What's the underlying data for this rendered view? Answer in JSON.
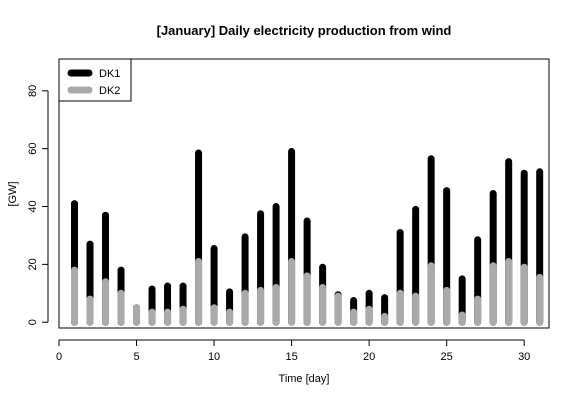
{
  "chart_data": {
    "type": "bar",
    "title": "[January] Daily electricity production from wind",
    "xlabel": "Time [day]",
    "ylabel": "[GW]",
    "xlim": [
      0,
      31.6
    ],
    "ylim": [
      -2,
      91
    ],
    "xticks": [
      0,
      5,
      10,
      15,
      20,
      25,
      30
    ],
    "yticks": [
      0,
      20,
      40,
      60,
      80
    ],
    "grid": false,
    "legend_position": "top-left",
    "x": [
      1,
      2,
      3,
      4,
      5,
      6,
      7,
      8,
      9,
      10,
      11,
      12,
      13,
      14,
      15,
      16,
      17,
      18,
      19,
      20,
      21,
      22,
      23,
      24,
      25,
      26,
      27,
      28,
      29,
      30,
      31
    ],
    "series": [
      {
        "name": "DK1",
        "color": "#000000",
        "values": [
          41,
          27,
          37,
          18,
          5,
          11.5,
          12.5,
          12.5,
          58.5,
          25.5,
          10.5,
          29.5,
          37.5,
          40,
          59,
          35,
          19,
          9.5,
          7.5,
          10,
          8.5,
          31,
          39,
          56.5,
          45.5,
          15,
          28.5,
          44.5,
          55.5,
          51.5,
          52
        ]
      },
      {
        "name": "DK2",
        "color": "#aaaaaa",
        "values": [
          18,
          8,
          14,
          10,
          5,
          3.5,
          3.5,
          4.5,
          21,
          5,
          3.5,
          10,
          11,
          12,
          21,
          16,
          12,
          9,
          3.5,
          4.5,
          2,
          10,
          9,
          19.5,
          11,
          2.5,
          8,
          19.5,
          21,
          19,
          15.5
        ]
      }
    ]
  }
}
